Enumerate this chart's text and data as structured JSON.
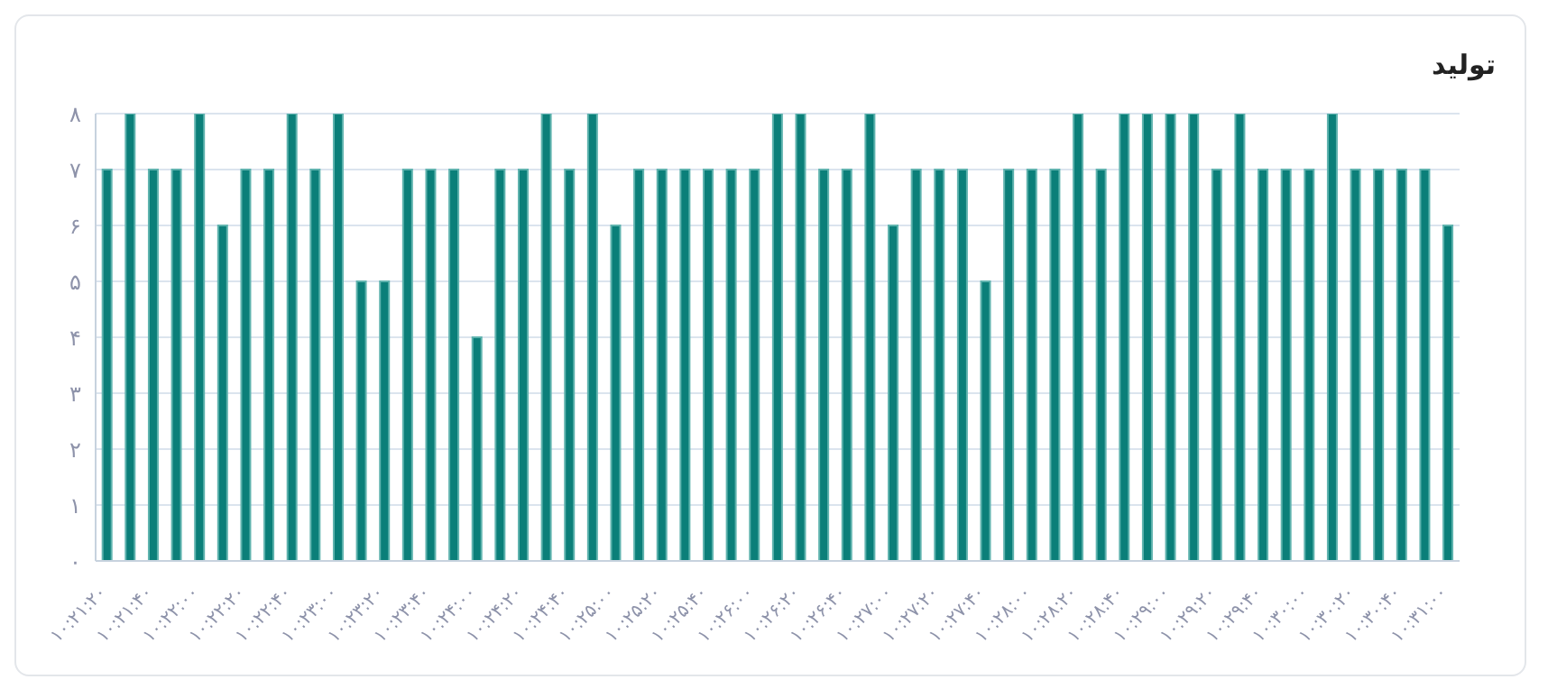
{
  "chart_data": {
    "type": "bar",
    "title": "تولید",
    "categories": [
      "۱۰:۲۱:۲۰",
      null,
      "۱۰:۲۱:۴۰",
      null,
      "۱۰:۲۲:۰۰",
      null,
      "۱۰:۲۲:۲۰",
      null,
      "۱۰:۲۲:۴۰",
      null,
      "۱۰:۲۳:۰۰",
      null,
      "۱۰:۲۳:۲۰",
      null,
      "۱۰:۲۳:۴۰",
      null,
      "۱۰:۲۴:۰۰",
      null,
      "۱۰:۲۴:۲۰",
      null,
      "۱۰:۲۴:۴۰",
      null,
      "۱۰:۲۵:۰۰",
      null,
      "۱۰:۲۵:۲۰",
      null,
      "۱۰:۲۵:۴۰",
      null,
      "۱۰:۲۶:۰۰",
      null,
      "۱۰:۲۶:۲۰",
      null,
      "۱۰:۲۶:۴۰",
      null,
      "۱۰:۲۷:۰۰",
      null,
      "۱۰:۲۷:۲۰",
      null,
      "۱۰:۲۷:۴۰",
      null,
      "۱۰:۲۸:۰۰",
      null,
      "۱۰:۲۸:۲۰",
      null,
      "۱۰:۲۸:۴۰",
      null,
      "۱۰:۲۹:۰۰",
      null,
      "۱۰:۲۹:۲۰",
      null,
      "۱۰:۲۹:۴۰",
      null,
      "۱۰:۳۰:۰۰",
      null,
      "۱۰:۳۰:۲۰",
      null,
      "۱۰:۳۰:۴۰",
      null,
      "۱۰:۳۱:۰۰"
    ],
    "values": [
      7,
      8,
      7,
      7,
      8,
      6,
      7,
      7,
      8,
      7,
      8,
      5,
      5,
      7,
      7,
      7,
      4,
      7,
      7,
      8,
      7,
      8,
      6,
      7,
      7,
      7,
      7,
      7,
      7,
      8,
      8,
      7,
      7,
      8,
      6,
      7,
      7,
      7,
      5,
      7,
      7,
      7,
      8,
      7,
      8,
      8,
      8,
      8,
      7,
      8,
      7,
      7,
      7,
      8,
      7,
      7,
      7,
      7,
      6
    ],
    "color": "#0b7f79",
    "ylim": [
      0,
      8
    ],
    "yticks": [
      {
        "value": 0,
        "label": "۰"
      },
      {
        "value": 1,
        "label": "۱"
      },
      {
        "value": 2,
        "label": "۲"
      },
      {
        "value": 3,
        "label": "۳"
      },
      {
        "value": 4,
        "label": "۴"
      },
      {
        "value": 5,
        "label": "۵"
      },
      {
        "value": 6,
        "label": "۶"
      },
      {
        "value": 7,
        "label": "۷"
      },
      {
        "value": 8,
        "label": "۸"
      }
    ],
    "grid": "y"
  }
}
